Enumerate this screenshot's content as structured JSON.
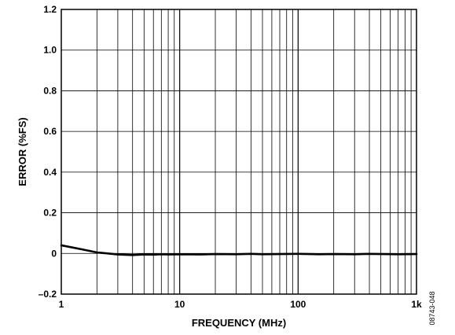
{
  "chart_data": {
    "type": "line",
    "xlabel": "FREQUENCY (MHz)",
    "ylabel": "ERROR (%FS)",
    "x_scale": "log",
    "xlim": [
      1,
      1000
    ],
    "ylim": [
      -0.2,
      1.2
    ],
    "grid": true,
    "x_ticks": [
      {
        "value": 1,
        "label": "1"
      },
      {
        "value": 10,
        "label": "10"
      },
      {
        "value": 100,
        "label": "100"
      },
      {
        "value": 1000,
        "label": "1k"
      }
    ],
    "y_ticks": [
      {
        "value": -0.2,
        "label": "–0.2"
      },
      {
        "value": 0,
        "label": "0"
      },
      {
        "value": 0.2,
        "label": "0.2"
      },
      {
        "value": 0.4,
        "label": "0.4"
      },
      {
        "value": 0.6,
        "label": "0.6"
      },
      {
        "value": 0.8,
        "label": "0.8"
      },
      {
        "value": 1.0,
        "label": "1.0"
      },
      {
        "value": 1.2,
        "label": "1.2"
      }
    ],
    "series": [
      {
        "color": "#000000",
        "x": [
          1,
          1.5,
          2,
          3,
          4,
          5,
          6,
          7,
          8,
          10,
          15,
          20,
          30,
          40,
          50,
          70,
          100,
          150,
          200,
          300,
          400,
          500,
          700,
          1000
        ],
        "values": [
          0.04,
          0.02,
          0.005,
          -0.005,
          -0.008,
          -0.005,
          -0.006,
          -0.004,
          -0.005,
          -0.004,
          -0.005,
          -0.003,
          -0.004,
          -0.002,
          -0.004,
          -0.003,
          -0.002,
          -0.004,
          -0.003,
          -0.004,
          -0.002,
          -0.003,
          -0.004,
          -0.003
        ]
      }
    ]
  },
  "figure_id": "08743-048"
}
